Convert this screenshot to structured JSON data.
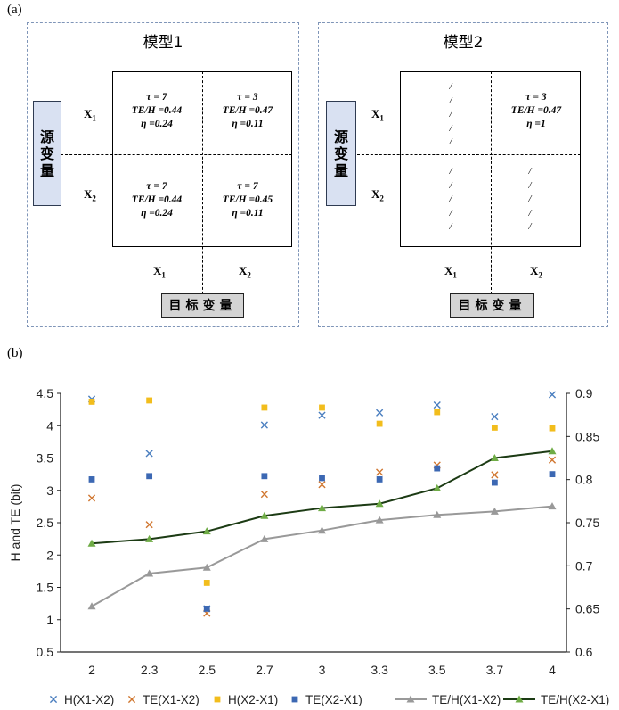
{
  "panel_a": {
    "label": "(a)",
    "model1": {
      "title": "模型1",
      "cells": {
        "x1x1": [
          "τ = 7",
          "TE/H =0.44",
          "η =0.24"
        ],
        "x1x2": [
          "τ = 3",
          "TE/H =0.47",
          "η =0.11"
        ],
        "x2x1": [
          "τ = 7",
          "TE/H =0.44",
          "η =0.24"
        ],
        "x2x2": [
          "τ = 7",
          "TE/H =0.45",
          "η =0.11"
        ]
      },
      "source_label_chars": [
        "源",
        "变",
        "量"
      ],
      "target_label": "目标变量",
      "row_labels": [
        "X",
        "X"
      ],
      "row_subs": [
        "1",
        "2"
      ],
      "col_labels": [
        "X",
        "X"
      ],
      "col_subs": [
        "1",
        "2"
      ]
    },
    "model2": {
      "title": "模型2",
      "cells": {
        "x1x1": [
          "/",
          "/",
          "/",
          "/",
          "/"
        ],
        "x1x2": [
          "τ = 3",
          "TE/H =0.47",
          "η =1"
        ],
        "x2x1": [
          "/",
          "/",
          "/",
          "/",
          "/"
        ],
        "x2x2": [
          "/",
          "/",
          "/",
          "/",
          "/"
        ]
      },
      "source_label_chars": [
        "源",
        "变",
        "量"
      ],
      "target_label": "目标变量",
      "row_labels": [
        "X",
        "X"
      ],
      "row_subs": [
        "1",
        "2"
      ],
      "col_labels": [
        "X",
        "X"
      ],
      "col_subs": [
        "1",
        "2"
      ]
    }
  },
  "panel_b": {
    "label": "(b)"
  },
  "chart_data": {
    "type": "scatter",
    "title": "",
    "xlabel": "",
    "ylabel": "H and TE (bit)",
    "categories": [
      "2",
      "2.3",
      "2.5",
      "2.7",
      "3",
      "3.3",
      "3.5",
      "3.7",
      "4"
    ],
    "ylim": [
      0.5,
      4.5
    ],
    "yticks": [
      "0.5",
      "1",
      "1.5",
      "2",
      "2.5",
      "3",
      "3.5",
      "4",
      "4.5"
    ],
    "y2lim": [
      0.6,
      0.9
    ],
    "y2ticks": [
      "0.6",
      "0.65",
      "0.7",
      "0.75",
      "0.8",
      "0.85",
      "0.9"
    ],
    "series": [
      {
        "name": "H(X1-X2)",
        "marker": "x",
        "color": "#4a7ebf",
        "axis": "left",
        "values": [
          4.41,
          3.57,
          1.17,
          4.01,
          4.16,
          4.2,
          4.32,
          4.14,
          4.48
        ]
      },
      {
        "name": "TE(X1-X2)",
        "marker": "x",
        "color": "#d0762f",
        "axis": "left",
        "values": [
          2.88,
          2.47,
          1.1,
          2.94,
          3.09,
          3.28,
          3.39,
          3.24,
          3.47
        ]
      },
      {
        "name": "H(X2-X1)",
        "marker": "square",
        "color": "#f2bd1c",
        "axis": "left",
        "values": [
          4.37,
          4.39,
          1.57,
          4.28,
          4.28,
          4.03,
          4.21,
          3.97,
          3.96
        ]
      },
      {
        "name": "TE(X2-X1)",
        "marker": "square",
        "color": "#3c68b3",
        "axis": "left",
        "values": [
          3.17,
          3.22,
          1.17,
          3.22,
          3.19,
          3.17,
          3.34,
          3.12,
          3.25
        ]
      },
      {
        "name": "TE/H(X1-X2)",
        "marker": "triangle-line",
        "color": "#999999",
        "axis": "right",
        "values": [
          0.653,
          0.691,
          0.698,
          0.731,
          0.741,
          0.753,
          0.759,
          0.763,
          0.769
        ]
      },
      {
        "name": "TE/H(X2-X1)",
        "marker": "triangle-line",
        "color": "#3f7e2c",
        "line_color": "#1c3b14",
        "marker_color": "#6fac46",
        "axis": "right",
        "values": [
          0.726,
          0.731,
          0.74,
          0.758,
          0.767,
          0.772,
          0.79,
          0.825,
          0.833
        ]
      }
    ],
    "legend_position": "bottom"
  }
}
